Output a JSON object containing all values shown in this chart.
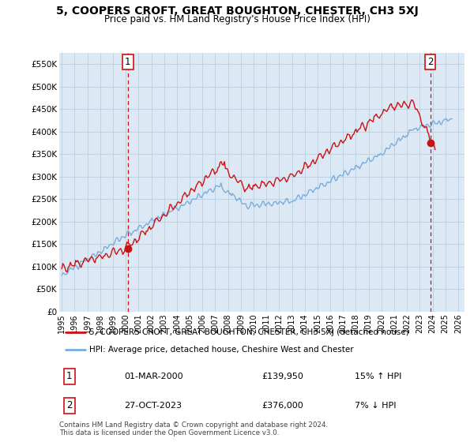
{
  "title": "5, COOPERS CROFT, GREAT BOUGHTON, CHESTER, CH3 5XJ",
  "subtitle": "Price paid vs. HM Land Registry's House Price Index (HPI)",
  "ylim": [
    0,
    575000
  ],
  "xlim": [
    1994.8,
    2026.5
  ],
  "yticks": [
    0,
    50000,
    100000,
    150000,
    200000,
    250000,
    300000,
    350000,
    400000,
    450000,
    500000,
    550000
  ],
  "ytick_labels": [
    "£0",
    "£50K",
    "£100K",
    "£150K",
    "£200K",
    "£250K",
    "£300K",
    "£350K",
    "£400K",
    "£450K",
    "£500K",
    "£550K"
  ],
  "hpi_color": "#7aacdc",
  "price_color": "#cc1111",
  "vline_color": "#cc1111",
  "marker1_year": 2000.17,
  "marker1_price": 139950,
  "marker2_year": 2023.82,
  "marker2_price": 376000,
  "vline1_year": 2000.17,
  "vline2_year": 2023.82,
  "legend_price_label": "5, COOPERS CROFT, GREAT BOUGHTON, CHESTER, CH3 5XJ (detached house)",
  "legend_hpi_label": "HPI: Average price, detached house, Cheshire West and Chester",
  "table_rows": [
    {
      "num": "1",
      "date": "01-MAR-2000",
      "price": "£139,950",
      "hpi": "15% ↑ HPI"
    },
    {
      "num": "2",
      "date": "27-OCT-2023",
      "price": "£376,000",
      "hpi": "7% ↓ HPI"
    }
  ],
  "footer": "Contains HM Land Registry data © Crown copyright and database right 2024.\nThis data is licensed under the Open Government Licence v3.0.",
  "bg_color": "#ffffff",
  "plot_bg_color": "#dce9f5",
  "grid_color": "#b8cfe0",
  "title_fontsize": 10,
  "subtitle_fontsize": 8.5
}
